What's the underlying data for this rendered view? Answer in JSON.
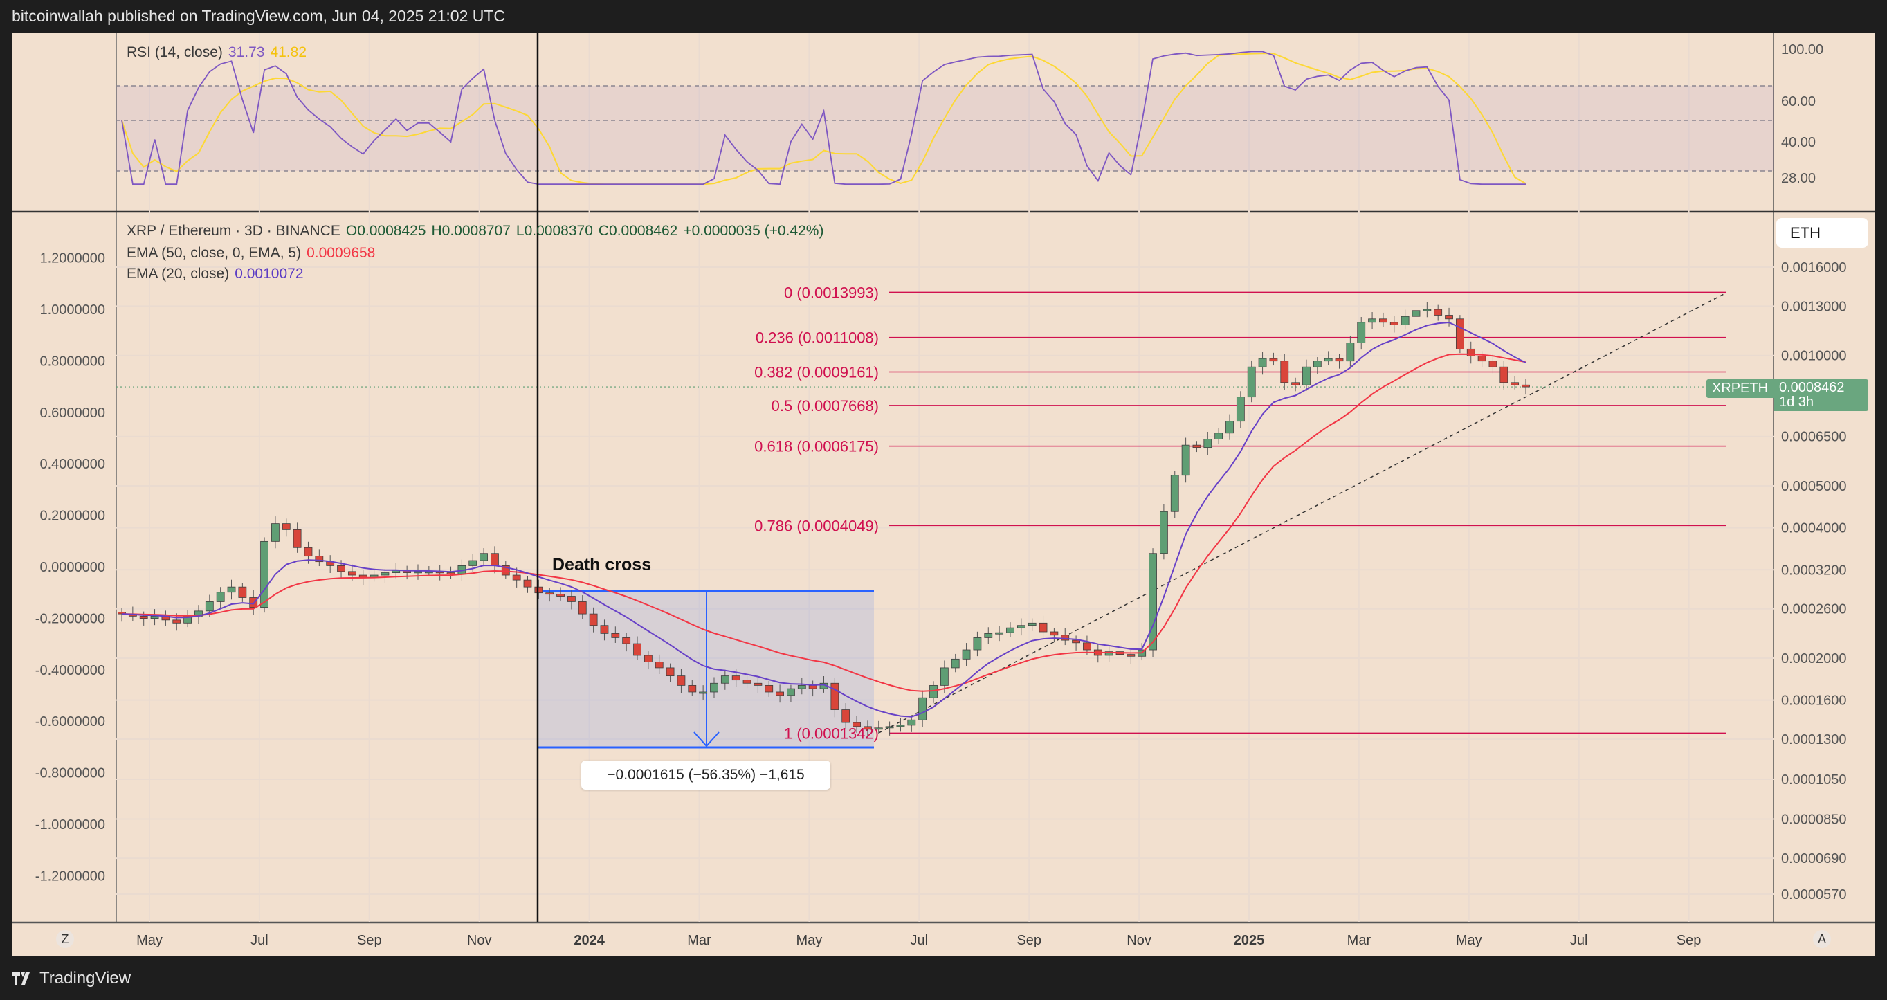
{
  "header": {
    "published": "bitcoinwallah published on TradingView.com, Jun 04, 2025 21:02 UTC"
  },
  "footer": {
    "brand": "TradingView"
  },
  "rsi_legend": {
    "title": "RSI (14, close)",
    "rsi_value": "31.73",
    "ma_value": "41.82"
  },
  "main_legend": {
    "symbol": "XRP / Ethereum · 3D · BINANCE",
    "open": "O0.0008425",
    "high": "H0.0008707",
    "low": "L0.0008370",
    "close": "C0.0008462",
    "change": "+0.0000035 (+0.42%)",
    "ema50_label": "EMA (50, close, 0, EMA, 5)",
    "ema50_value": "0.0009658",
    "ema20_label": "EMA (20, close)",
    "ema20_value": "0.0010072"
  },
  "currency_button": "ETH",
  "price_tag": {
    "symbol": "XRPETH",
    "price": "0.0008462",
    "countdown": "1d 3h"
  },
  "annotations": {
    "death_cross": "Death cross",
    "measure": "−0.0001615 (−56.35%) −1,615"
  },
  "buttons": {
    "zoom": "Z",
    "auto": "A"
  },
  "colors": {
    "background": "#f2e0cf",
    "up": "#5f9e74",
    "down": "#d9453a",
    "ema50": "#f23645",
    "ema20": "#6741c7",
    "rsi": "#7e57c2",
    "rsi_ma": "#fdd835",
    "fib": "#d0104f",
    "measure": "#2962ff"
  },
  "chart_data": {
    "type": "candlestick",
    "symbol": "XRPETH",
    "interval": "3D",
    "scale": "log",
    "period": [
      "2023-04",
      "2025-06"
    ],
    "x_ticks": [
      "May",
      "Jul",
      "Sep",
      "Nov",
      "2024",
      "Mar",
      "May",
      "Jul",
      "Sep",
      "Nov",
      "2025",
      "Mar",
      "May",
      "Jul",
      "Sep"
    ],
    "right_axis_ticks": [
      "0.0016000",
      "0.0013000",
      "0.0010000",
      "0.0006500",
      "0.0005000",
      "0.0004000",
      "0.0003200",
      "0.0002600",
      "0.0002000",
      "0.0001600",
      "0.0001300",
      "0.0001050",
      "0.0000850",
      "0.0000690",
      "0.0000570"
    ],
    "left_axis_ticks": [
      "1.2000000",
      "1.0000000",
      "0.8000000",
      "0.6000000",
      "0.4000000",
      "0.2000000",
      "0.0000000",
      "-0.2000000",
      "-0.4000000",
      "-0.6000000",
      "-0.8000000",
      "-1.0000000",
      "-1.2000000"
    ],
    "rsi_axis_ticks": [
      "100.00",
      "60.00",
      "40.00",
      "28.00"
    ],
    "close": [
      0.000253,
      0.00025,
      0.000247,
      0.00025,
      0.000245,
      0.000241,
      0.00025,
      0.000257,
      0.00027,
      0.000284,
      0.000292,
      0.000276,
      0.000262,
      0.000372,
      0.000409,
      0.000396,
      0.00036,
      0.000344,
      0.000334,
      0.000327,
      0.000317,
      0.000311,
      0.000307,
      0.000311,
      0.000315,
      0.000319,
      0.000315,
      0.000317,
      0.000317,
      0.000315,
      0.000313,
      0.000327,
      0.000336,
      0.000349,
      0.000327,
      0.000311,
      0.000303,
      0.000292,
      0.000283,
      0.000281,
      0.000278,
      0.00027,
      0.000253,
      0.000238,
      0.000228,
      0.000223,
      0.000216,
      0.000203,
      0.000196,
      0.00019,
      0.000182,
      0.000173,
      0.000167,
      0.000167,
      0.000175,
      0.000182,
      0.000178,
      0.000175,
      0.000173,
      0.000167,
      0.000164,
      0.00017,
      0.000173,
      0.00017,
      0.000175,
      0.000152,
      0.000142,
      0.000139,
      0.000137,
      0.000138,
      0.000139,
      0.00014,
      0.000144,
      0.000162,
      0.000173,
      0.00019,
      0.000199,
      0.000209,
      0.000223,
      0.000228,
      0.000229,
      0.000235,
      0.000238,
      0.000241,
      0.00023,
      0.000226,
      0.00022,
      0.000217,
      0.000209,
      0.000203,
      0.000207,
      0.000204,
      0.000202,
      0.000209,
      0.000349,
      0.000436,
      0.000529,
      0.000621,
      0.000613,
      0.000641,
      0.000662,
      0.000705,
      0.000802,
      0.000941,
      0.000984,
      0.000971,
      0.000866,
      0.000855,
      0.000941,
      0.000971,
      0.000984,
      0.000971,
      0.001069,
      0.001193,
      0.001215,
      0.001193,
      0.001177,
      0.001231,
      0.00127,
      0.001278,
      0.001239,
      0.001215,
      0.001035,
      0.000997,
      0.000971,
      0.000941,
      0.000866,
      0.000855,
      0.0008462
    ],
    "last_price": 0.0008462,
    "fib_levels": [
      {
        "ratio": "0",
        "price": 0.0013993,
        "label": "0 (0.0013993)"
      },
      {
        "ratio": "0.236",
        "price": 0.0011008,
        "label": "0.236 (0.0011008)"
      },
      {
        "ratio": "0.382",
        "price": 0.0009161,
        "label": "0.382 (0.0009161)"
      },
      {
        "ratio": "0.5",
        "price": 0.0007668,
        "label": "0.5 (0.0007668)"
      },
      {
        "ratio": "0.618",
        "price": 0.0006175,
        "label": "0.618 (0.0006175)"
      },
      {
        "ratio": "0.786",
        "price": 0.0004049,
        "label": "0.786 (0.0004049)"
      },
      {
        "ratio": "1",
        "price": 0.0001342,
        "label": "1 (0.0001342)"
      }
    ],
    "rsi_bands": {
      "upper": 70,
      "middle": 50,
      "lower": 30
    }
  }
}
